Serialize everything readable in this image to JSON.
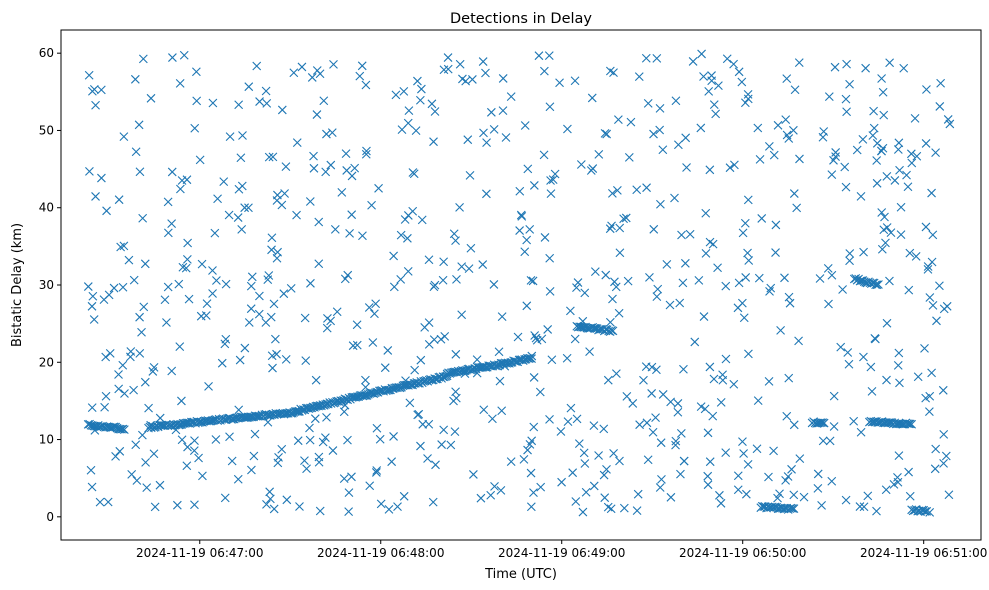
{
  "chart_data": {
    "type": "scatter",
    "title": "Detections in Delay",
    "xlabel": "Time (UTC)",
    "ylabel": "Bistatic Delay (km)",
    "x_unit": "time",
    "x_ticks": [
      "2024-11-19 06:47:00",
      "2024-11-19 06:48:00",
      "2024-11-19 06:49:00",
      "2024-11-19 06:50:00",
      "2024-11-19 06:51:00"
    ],
    "y_ticks": [
      0,
      10,
      20,
      30,
      40,
      50,
      60
    ],
    "xlim": [
      "2024-11-19 06:46:14",
      "2024-11-19 06:51:19"
    ],
    "ylim": [
      -3,
      63
    ],
    "marker": "x",
    "color": "#1f77b4",
    "grid": false,
    "legend": "none",
    "tracks": [
      {
        "t_start": "2024-11-19 06:46:23",
        "t_end": "2024-11-19 06:46:35",
        "delay_start": 11.9,
        "delay_end": 11.4
      },
      {
        "t_start": "2024-11-19 06:46:43",
        "t_end": "2024-11-19 06:47:33",
        "delay_start": 11.6,
        "delay_end": 13.6
      },
      {
        "t_start": "2024-11-19 06:47:33",
        "t_end": "2024-11-19 06:48:22",
        "delay_start": 13.8,
        "delay_end": 18.2
      },
      {
        "t_start": "2024-11-19 06:48:22",
        "t_end": "2024-11-19 06:48:50",
        "delay_start": 18.5,
        "delay_end": 20.5
      },
      {
        "t_start": "2024-11-19 06:49:05",
        "t_end": "2024-11-19 06:49:17",
        "delay_start": 24.7,
        "delay_end": 24.0
      },
      {
        "t_start": "2024-11-19 06:50:06",
        "t_end": "2024-11-19 06:50:17",
        "delay_start": 1.3,
        "delay_end": 1.0
      },
      {
        "t_start": "2024-11-19 06:50:23",
        "t_end": "2024-11-19 06:50:27",
        "delay_start": 12.2,
        "delay_end": 12.2
      },
      {
        "t_start": "2024-11-19 06:50:37",
        "t_end": "2024-11-19 06:50:45",
        "delay_start": 30.8,
        "delay_end": 30.0
      },
      {
        "t_start": "2024-11-19 06:50:42",
        "t_end": "2024-11-19 06:50:56",
        "delay_start": 12.3,
        "delay_end": 12.0
      },
      {
        "t_start": "2024-11-19 06:50:56",
        "t_end": "2024-11-19 06:51:01",
        "delay_start": 0.9,
        "delay_end": 0.7
      }
    ],
    "scattered_detections": {
      "t_range": [
        "2024-11-19 06:46:23",
        "2024-11-19 06:51:09"
      ],
      "delay_range": [
        0.5,
        60
      ],
      "approx_count": 780
    }
  }
}
